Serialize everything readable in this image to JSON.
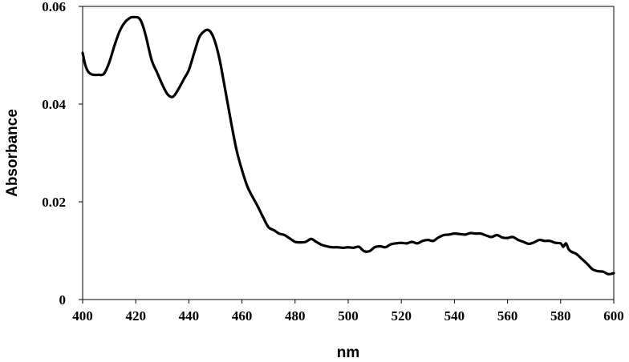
{
  "chart_data": {
    "type": "line",
    "title": "",
    "xlabel": "nm",
    "ylabel": "Absorbance",
    "xlim": [
      400,
      600
    ],
    "ylim": [
      0,
      0.06
    ],
    "x_ticks": [
      "400",
      "420",
      "440",
      "460",
      "480",
      "500",
      "520",
      "540",
      "560",
      "580",
      "600"
    ],
    "y_ticks": [
      "0",
      "0.02",
      "0.04",
      "0.06"
    ],
    "grid": false,
    "legend": "none",
    "line_color": "#000000",
    "series": [
      {
        "x": [
          400,
          401,
          402,
          403,
          404,
          406,
          408,
          410,
          412,
          414,
          416,
          418,
          419,
          420,
          421,
          422,
          423,
          424,
          426,
          428,
          430,
          432,
          434,
          436,
          438,
          440,
          442,
          444,
          446,
          447,
          448,
          449,
          450,
          451,
          452,
          454,
          456,
          458,
          460,
          462,
          464,
          466,
          468,
          470,
          472,
          474,
          476,
          478,
          480,
          482,
          484,
          486,
          488,
          490,
          492,
          494,
          496,
          498,
          500,
          502,
          504,
          506,
          508,
          510,
          512,
          514,
          516,
          518,
          520,
          522,
          524,
          526,
          528,
          530,
          532,
          534,
          536,
          538,
          540,
          542,
          544,
          546,
          548,
          550,
          552,
          554,
          556,
          558,
          560,
          562,
          564,
          566,
          568,
          570,
          572,
          574,
          576,
          578,
          580,
          581,
          582,
          583,
          584,
          586,
          588,
          590,
          592,
          594,
          596,
          598,
          600
        ],
        "values": [
          0.0505,
          0.048,
          0.0467,
          0.0462,
          0.046,
          0.046,
          0.0462,
          0.0485,
          0.052,
          0.055,
          0.0568,
          0.0577,
          0.0578,
          0.0578,
          0.0577,
          0.057,
          0.0555,
          0.0535,
          0.049,
          0.0465,
          0.044,
          0.042,
          0.0415,
          0.043,
          0.045,
          0.047,
          0.0505,
          0.0538,
          0.055,
          0.0552,
          0.0549,
          0.054,
          0.0525,
          0.0505,
          0.048,
          0.042,
          0.036,
          0.0305,
          0.0265,
          0.0232,
          0.021,
          0.019,
          0.0168,
          0.0148,
          0.0142,
          0.0135,
          0.0132,
          0.0125,
          0.0118,
          0.0117,
          0.0118,
          0.0124,
          0.0118,
          0.0112,
          0.0109,
          0.0107,
          0.0107,
          0.0106,
          0.0107,
          0.0106,
          0.0108,
          0.0099,
          0.0099,
          0.0107,
          0.0109,
          0.0107,
          0.0113,
          0.0115,
          0.0116,
          0.0115,
          0.0118,
          0.0115,
          0.012,
          0.0122,
          0.012,
          0.0127,
          0.0132,
          0.0133,
          0.0135,
          0.0134,
          0.0133,
          0.0136,
          0.0135,
          0.0135,
          0.0131,
          0.0128,
          0.0132,
          0.0127,
          0.0126,
          0.0128,
          0.0122,
          0.0118,
          0.0114,
          0.0117,
          0.0122,
          0.012,
          0.012,
          0.0116,
          0.0115,
          0.0108,
          0.0115,
          0.0103,
          0.0098,
          0.0093,
          0.0083,
          0.0073,
          0.0062,
          0.0058,
          0.0057,
          0.0052,
          0.0054
        ]
      }
    ]
  }
}
